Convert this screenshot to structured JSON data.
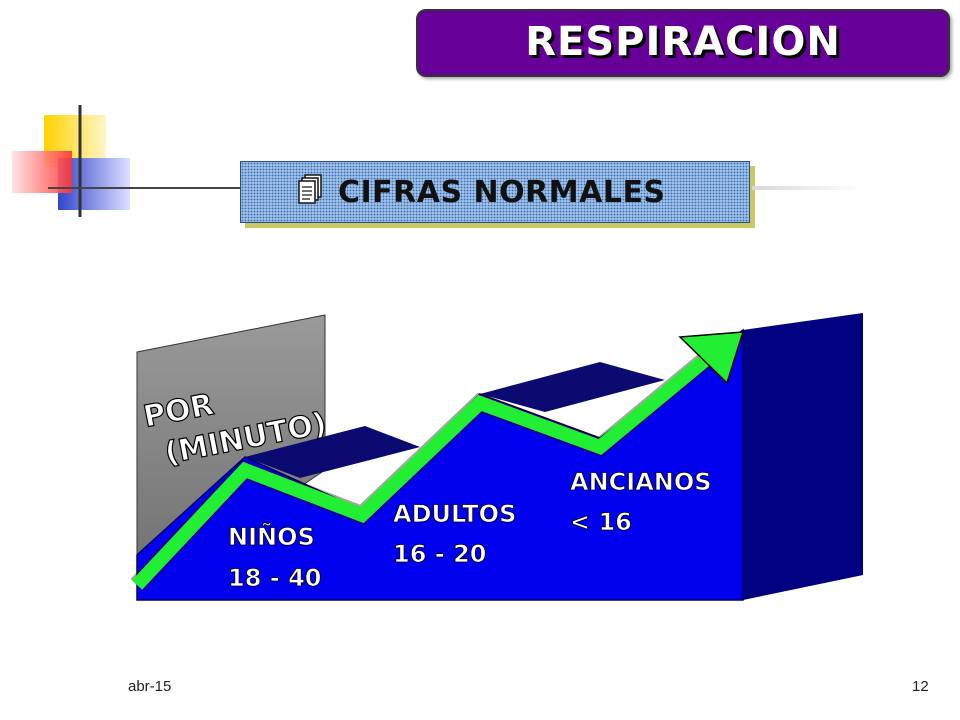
{
  "title": "RESPIRACION",
  "subtitle": "CIFRAS NORMALES",
  "icon": "document-stack-icon",
  "axis_label": {
    "line1": "POR",
    "line2": "(MINUTO)"
  },
  "steps": [
    {
      "group": "NIÑOS",
      "range": "18 - 40"
    },
    {
      "group": "ADULTOS",
      "range": "16 - 20"
    },
    {
      "group": "ANCIANOS",
      "range": "< 16"
    }
  ],
  "footer": {
    "date": "abr-15",
    "page": "12"
  },
  "colors": {
    "title_bg": "#660099",
    "steps_front": "#0000ee",
    "steps_top": "#0a0a70",
    "steps_side": "#000080",
    "arrow": "#22ee33",
    "panel": "#888888"
  }
}
